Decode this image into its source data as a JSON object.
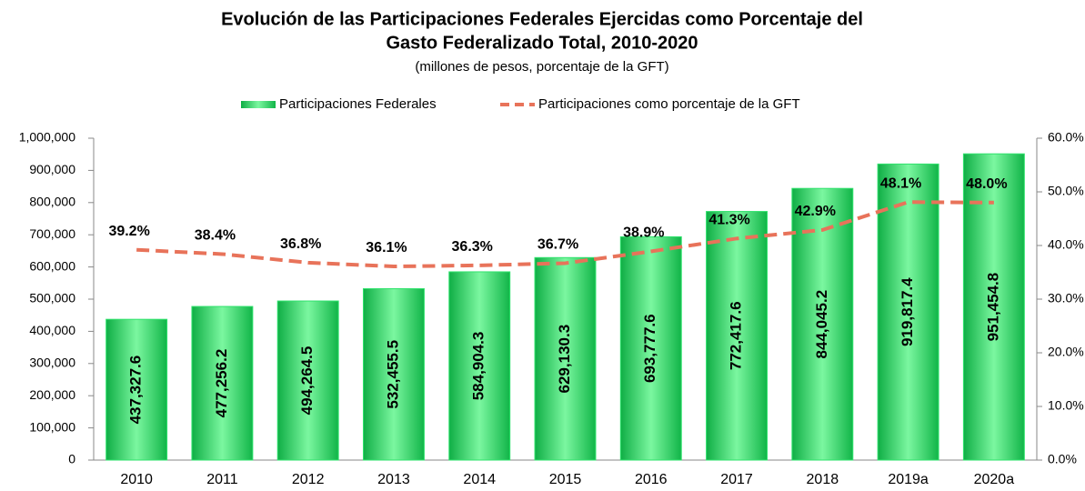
{
  "chart_data": {
    "type": "bar_line",
    "title": [
      "Evolución de las Participaciones Federales Ejercidas como Porcentaje del",
      "Gasto Federalizado Total, 2010-2020"
    ],
    "subtitle": "(millones de pesos, porcentaje de la GFT)",
    "categories": [
      "2010",
      "2011",
      "2012",
      "2013",
      "2014",
      "2015",
      "2016",
      "2017",
      "2018",
      "2019a",
      "2020a"
    ],
    "series": [
      {
        "name": "Participaciones Federales",
        "type": "bar",
        "color": "#2fe36c",
        "values": [
          437327.6,
          477256.2,
          494264.5,
          532455.5,
          584904.3,
          629130.3,
          693777.6,
          772417.6,
          844045.2,
          919817.4,
          951454.8
        ],
        "value_labels": [
          "437,327.6",
          "477,256.2",
          "494,264.5",
          "532,455.5",
          "584,904.3",
          "629,130.3",
          "693,777.6",
          "772,417.6",
          "844,045.2",
          "919,817.4",
          "951,454.8"
        ]
      },
      {
        "name": "Participaciones como porcentaje de la GFT",
        "type": "line",
        "axis": "y2",
        "color": "#e8735a",
        "dashed": true,
        "values": [
          39.2,
          38.4,
          36.8,
          36.1,
          36.3,
          36.7,
          38.9,
          41.3,
          42.9,
          48.1,
          48.0
        ],
        "value_labels": [
          "39.2%",
          "38.4%",
          "36.8%",
          "36.1%",
          "36.3%",
          "36.7%",
          "38.9%",
          "41.3%",
          "42.9%",
          "48.1%",
          "48.0%"
        ]
      }
    ],
    "ylim": [
      0,
      1000000
    ],
    "yticks": [
      0,
      {
        "value": 100000,
        "label": "100,000"
      },
      {
        "value": 200000,
        "label": "200,000"
      },
      {
        "value": 300000,
        "label": "300,000"
      },
      {
        "value": 400000,
        "label": "400,000"
      },
      {
        "value": 500000,
        "label": "500,000"
      },
      {
        "value": 600000,
        "label": "600,000"
      },
      {
        "value": 700000,
        "label": "700,000"
      },
      {
        "value": 800000,
        "label": "800,000"
      },
      {
        "value": 900000,
        "label": "900,000"
      },
      {
        "value": 1000000,
        "label": "1,000,000"
      }
    ],
    "y2lim": [
      0,
      60
    ],
    "y2ticks": [
      {
        "value": 0,
        "label": "0.0%"
      },
      {
        "value": 10,
        "label": "10.0%"
      },
      {
        "value": 20,
        "label": "20.0%"
      },
      {
        "value": 30,
        "label": "30.0%"
      },
      {
        "value": 40,
        "label": "40.0%"
      },
      {
        "value": 50,
        "label": "50.0%"
      },
      {
        "value": 60,
        "label": "60.0%"
      }
    ],
    "legend": "top",
    "grid": false
  }
}
